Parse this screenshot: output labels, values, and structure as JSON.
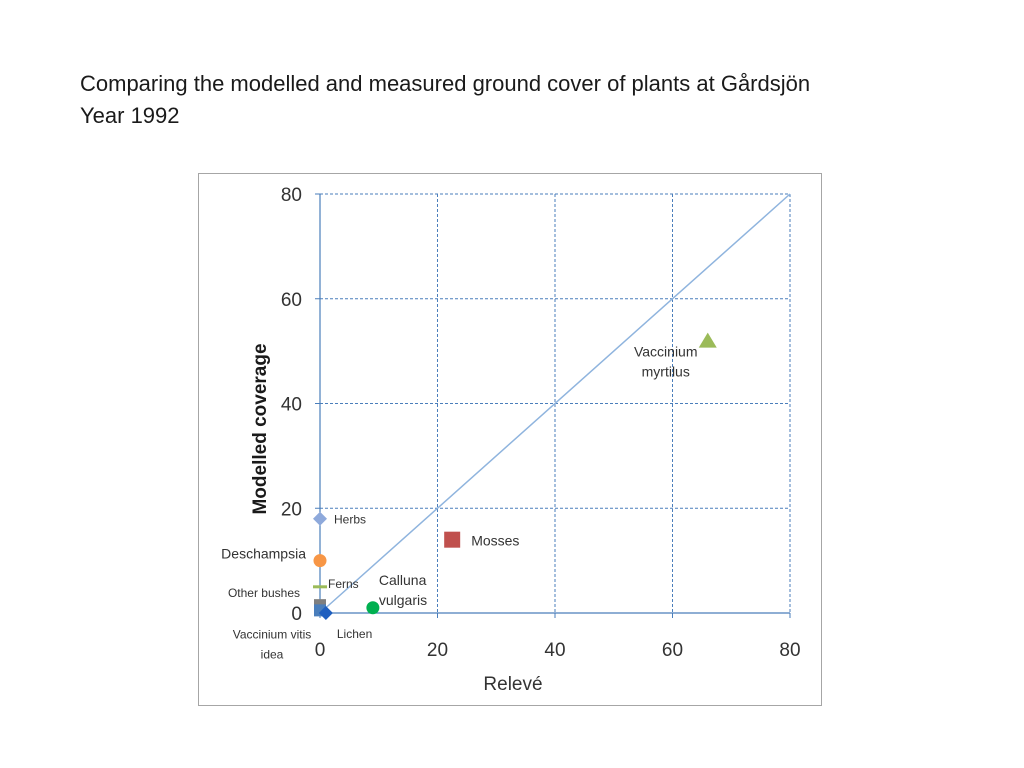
{
  "slide": {
    "title_line1": "Comparing the modelled and measured ground cover of plants at Gårdsjön",
    "title_line2": "Year 1992"
  },
  "chart_data": {
    "type": "scatter",
    "xlabel": "Relevé",
    "ylabel": "Modelled coverage",
    "xlim": [
      0,
      80
    ],
    "ylim": [
      0,
      80
    ],
    "x_ticks": [
      0,
      20,
      40,
      60,
      80
    ],
    "y_ticks": [
      0,
      20,
      40,
      60,
      80
    ],
    "x_tick_labels": [
      "0",
      "20",
      "40",
      "60",
      "80"
    ],
    "y_tick_labels": [
      "0",
      "20",
      "40",
      "60",
      "80"
    ],
    "grid": true,
    "reference_line": {
      "from": [
        0,
        0
      ],
      "to": [
        80,
        80
      ],
      "color": "#8fb4de"
    },
    "series": [
      {
        "name": "Vaccinium myrtilus",
        "label_lines": [
          "Vaccinium",
          "myrtilus"
        ],
        "x": 66,
        "y": 52,
        "marker": "triangle",
        "color": "#9bbb59"
      },
      {
        "name": "Herbs",
        "label_lines": [
          "Herbs"
        ],
        "x": 0,
        "y": 18,
        "marker": "diamond",
        "color": "#8ea9db"
      },
      {
        "name": "Mosses",
        "label_lines": [
          "Mosses"
        ],
        "x": 22.5,
        "y": 14,
        "marker": "square",
        "color": "#c0504d"
      },
      {
        "name": "Deschampsia",
        "label_lines": [
          "Deschampsia"
        ],
        "x": 0,
        "y": 10,
        "marker": "circle",
        "color": "#f79646"
      },
      {
        "name": "Ferns",
        "label_lines": [
          "Ferns"
        ],
        "x": 0,
        "y": 5,
        "marker": "dash",
        "color": "#9bbb59"
      },
      {
        "name": "Calluna vulgaris",
        "label_lines": [
          "Calluna",
          "vulgaris"
        ],
        "x": 9,
        "y": 1,
        "marker": "circle",
        "color": "#00b050"
      },
      {
        "name": "Other bushes",
        "label_lines": [
          "Other bushes"
        ],
        "x": 0,
        "y": 1.5,
        "marker": "square",
        "color": "#7f7f7f"
      },
      {
        "name": "Vaccinium vitis idea",
        "label_lines": [
          "Vaccinium vitis",
          "idea"
        ],
        "x": 0,
        "y": 0.5,
        "marker": "square",
        "color": "#4a7ebb"
      },
      {
        "name": "Lichen",
        "label_lines": [
          "Lichen"
        ],
        "x": 1,
        "y": 0,
        "marker": "diamond",
        "color": "#1f5fbf"
      }
    ]
  }
}
